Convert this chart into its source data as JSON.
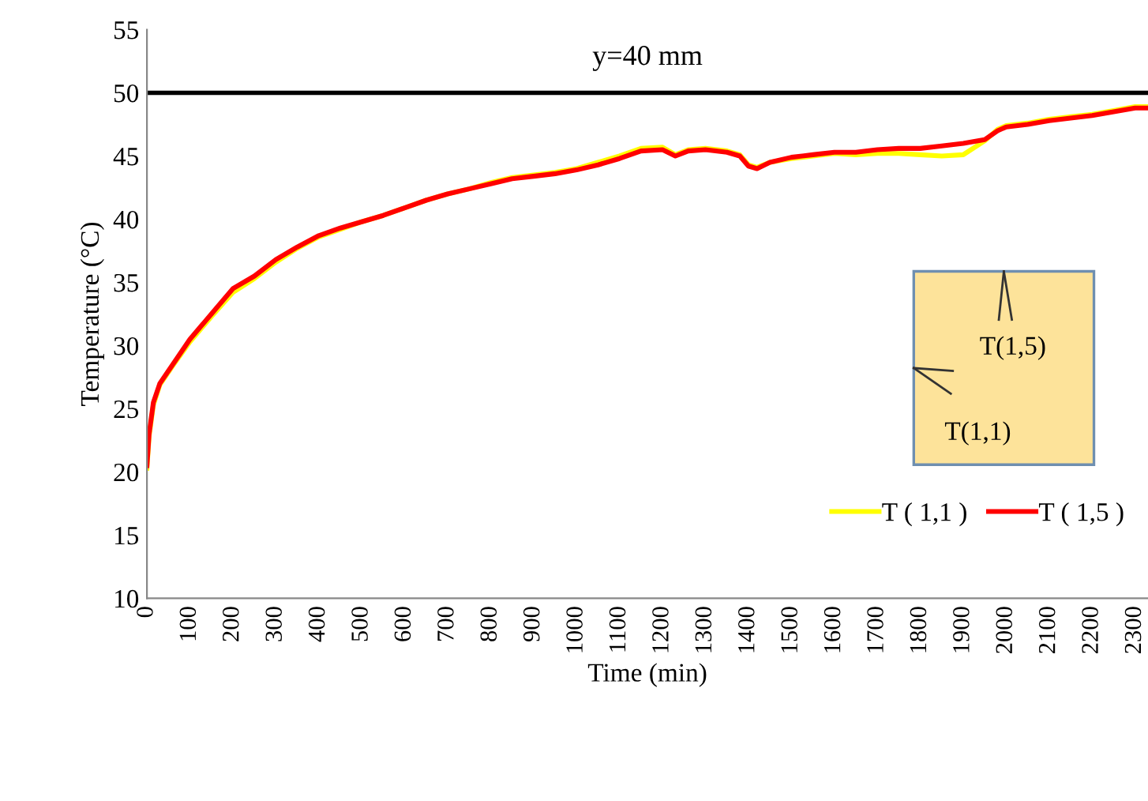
{
  "chart_data": {
    "type": "line",
    "title": "y=40 mm",
    "xlabel": "Time (min)",
    "ylabel": "Temperature (°C)",
    "xlim": [
      0,
      2330
    ],
    "xticks": [
      0,
      100,
      200,
      300,
      400,
      500,
      600,
      700,
      800,
      900,
      1000,
      1100,
      1200,
      1300,
      1400,
      1500,
      1600,
      1700,
      1800,
      1900,
      2000,
      2100,
      2200,
      2300
    ],
    "ylim": [
      10,
      55
    ],
    "yticks": [
      10,
      15,
      20,
      25,
      30,
      35,
      40,
      45,
      50,
      55
    ],
    "grid": false,
    "legend": "bottom right",
    "marker": "none",
    "line_style": "solid",
    "ref_lines": [
      {
        "axis": "y",
        "value": 50,
        "color": "#000000"
      }
    ],
    "annotations": [
      "T(1,5)",
      "T(1,1)"
    ],
    "series": [
      {
        "name": "T ( 1,1 )",
        "color": "#ffff00",
        "x": [
          0,
          5,
          15,
          30,
          60,
          100,
          150,
          200,
          250,
          300,
          350,
          400,
          450,
          500,
          550,
          600,
          650,
          700,
          750,
          800,
          850,
          900,
          950,
          1000,
          1050,
          1100,
          1150,
          1200,
          1230,
          1260,
          1300,
          1350,
          1380,
          1400,
          1420,
          1450,
          1500,
          1550,
          1600,
          1650,
          1700,
          1750,
          1800,
          1850,
          1900,
          1950,
          1980,
          2000,
          2050,
          2100,
          2150,
          2200,
          2250,
          2300,
          2330
        ],
        "values": [
          20.3,
          22.8,
          25.3,
          26.9,
          28.4,
          30.3,
          32.3,
          34.2,
          35.3,
          36.6,
          37.7,
          38.6,
          39.2,
          39.8,
          40.3,
          40.9,
          41.5,
          42.0,
          42.4,
          42.9,
          43.3,
          43.5,
          43.7,
          44.0,
          44.5,
          45.0,
          45.6,
          45.7,
          45.1,
          45.5,
          45.6,
          45.4,
          45.1,
          44.3,
          44.1,
          44.5,
          44.8,
          45.0,
          45.2,
          45.1,
          45.2,
          45.2,
          45.1,
          45.0,
          45.1,
          46.2,
          47.1,
          47.4,
          47.6,
          47.9,
          48.1,
          48.3,
          48.6,
          48.9,
          48.9
        ]
      },
      {
        "name": "T ( 1,5 )",
        "color": "#ff0000",
        "x": [
          0,
          5,
          15,
          30,
          60,
          100,
          150,
          200,
          250,
          300,
          350,
          400,
          450,
          500,
          550,
          600,
          650,
          700,
          750,
          800,
          850,
          900,
          950,
          1000,
          1050,
          1100,
          1150,
          1200,
          1230,
          1260,
          1300,
          1350,
          1380,
          1400,
          1420,
          1450,
          1500,
          1550,
          1600,
          1650,
          1700,
          1750,
          1800,
          1850,
          1900,
          1950,
          1980,
          2000,
          2050,
          2100,
          2150,
          2200,
          2250,
          2300,
          2330
        ],
        "values": [
          20.5,
          23.0,
          25.5,
          27.0,
          28.5,
          30.5,
          32.5,
          34.5,
          35.5,
          36.8,
          37.8,
          38.7,
          39.3,
          39.8,
          40.3,
          40.9,
          41.5,
          42.0,
          42.4,
          42.8,
          43.2,
          43.4,
          43.6,
          43.9,
          44.3,
          44.8,
          45.4,
          45.5,
          45.0,
          45.4,
          45.5,
          45.3,
          45.0,
          44.2,
          44.0,
          44.5,
          44.9,
          45.1,
          45.3,
          45.3,
          45.5,
          45.6,
          45.6,
          45.8,
          46.0,
          46.3,
          47.0,
          47.3,
          47.5,
          47.8,
          48.0,
          48.2,
          48.5,
          48.8,
          48.8
        ]
      }
    ]
  }
}
